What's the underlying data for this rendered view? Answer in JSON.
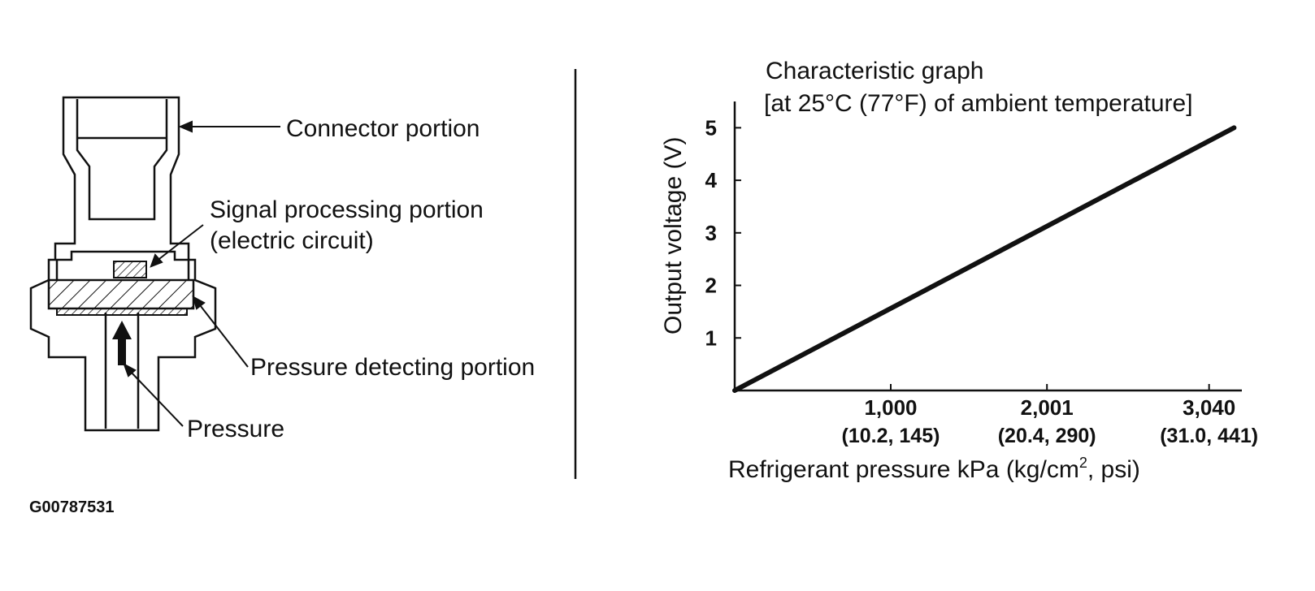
{
  "diagram": {
    "labels": {
      "connector": "Connector portion",
      "signal_line1": "Signal processing portion",
      "signal_line2": "(electric circuit)",
      "pressure_detecting": "Pressure detecting portion",
      "pressure": "Pressure"
    }
  },
  "figure_id": "G00787531",
  "chart_data": {
    "type": "line",
    "title": "Characteristic graph",
    "subtitle": "[at 25°C (77°F) of ambient temperature]",
    "ylabel": "Output voltage (V)",
    "xlabel_main": "Refrigerant pressure kPa (kg/cm",
    "xlabel_sup": "2",
    "xlabel_tail": ", psi)",
    "x_ticks": [
      {
        "value": 1000,
        "label": "1,000",
        "sub": "(10.2, 145)"
      },
      {
        "value": 2001,
        "label": "2,001",
        "sub": "(20.4, 290)"
      },
      {
        "value": 3040,
        "label": "3,040",
        "sub": "(31.0, 441)"
      }
    ],
    "y_ticks": [
      {
        "value": 1,
        "label": "1"
      },
      {
        "value": 2,
        "label": "2"
      },
      {
        "value": 3,
        "label": "3"
      },
      {
        "value": 4,
        "label": "4"
      },
      {
        "value": 5,
        "label": "5"
      }
    ],
    "series": [
      {
        "x": [
          0,
          3200
        ],
        "y": [
          0,
          5
        ]
      }
    ],
    "xlim": [
      0,
      3250
    ],
    "ylim": [
      0,
      5.5
    ],
    "grid": false
  }
}
